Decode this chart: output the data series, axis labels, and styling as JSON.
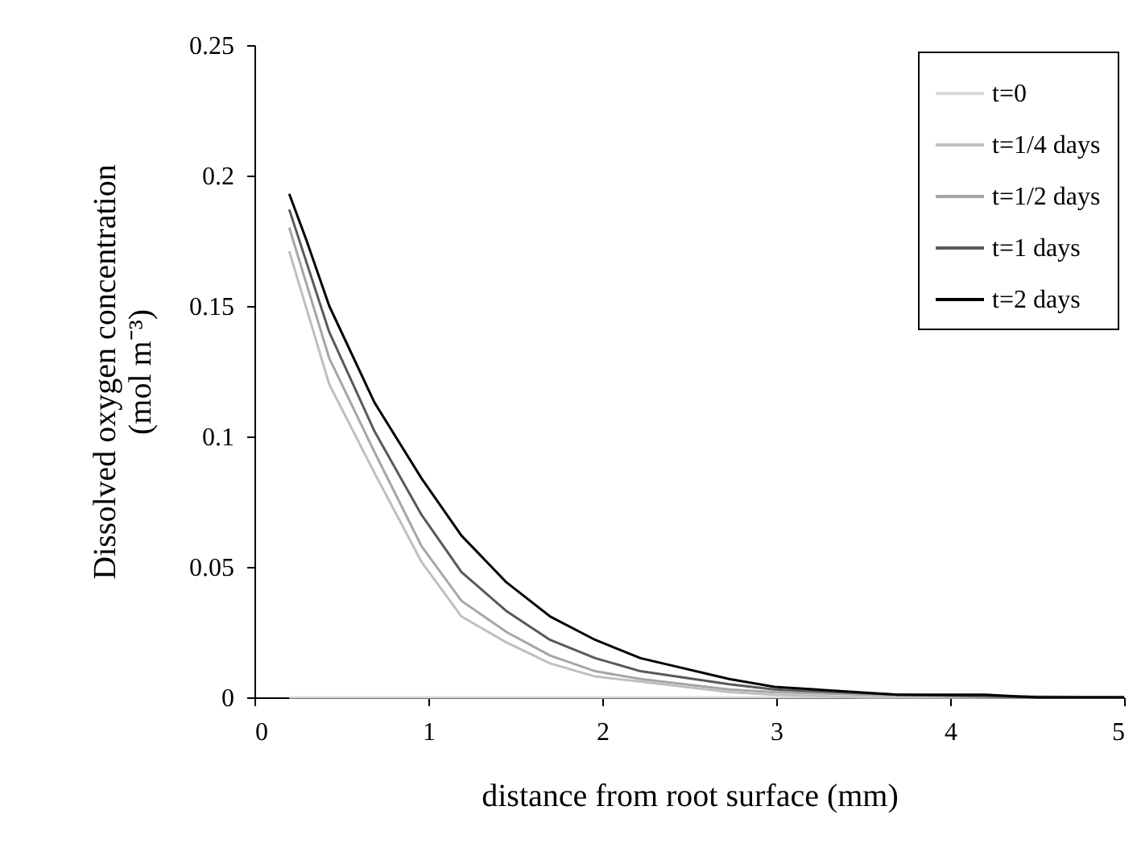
{
  "chart_data": {
    "type": "line",
    "xlabel": "distance from root surface (mm)",
    "ylabel": "Dissolved oxygen concentration\n(mol m⁻³)",
    "xlim": [
      0,
      5
    ],
    "xticks": [
      0,
      1,
      2,
      3,
      4,
      5
    ],
    "ylim": [
      0,
      0.25
    ],
    "yticks": [
      0,
      0.05,
      0.1,
      0.15,
      0.2,
      0.25
    ],
    "grid": false,
    "legend": "top right",
    "marker": "none",
    "line_style": "solid",
    "series": [
      {
        "name": "t=0",
        "color": "#d9d9d9",
        "x": [
          0.2,
          1,
          2,
          3,
          4,
          5
        ],
        "values": [
          0,
          0,
          0,
          0,
          0,
          0
        ]
      },
      {
        "name": "t=1/4 days",
        "color": "#bfbfbf",
        "x": [
          0.2,
          0.43,
          0.69,
          0.96,
          1.19,
          1.45,
          1.7,
          1.96,
          2.22,
          2.73,
          2.99,
          3.5,
          5
        ],
        "values": [
          0.171,
          0.12,
          0.086,
          0.052,
          0.031,
          0.021,
          0.013,
          0.008,
          0.006,
          0.002,
          0.001,
          0,
          0
        ]
      },
      {
        "name": "t=1/2 days",
        "color": "#a6a6a6",
        "x": [
          0.2,
          0.43,
          0.69,
          0.96,
          1.19,
          1.45,
          1.7,
          1.96,
          2.22,
          2.73,
          2.99,
          3.5,
          5
        ],
        "values": [
          0.18,
          0.13,
          0.094,
          0.058,
          0.037,
          0.025,
          0.016,
          0.01,
          0.007,
          0.003,
          0.002,
          0.001,
          0
        ]
      },
      {
        "name": "t=1 days",
        "color": "#595959",
        "x": [
          0.2,
          0.43,
          0.69,
          0.96,
          1.19,
          1.45,
          1.7,
          1.96,
          2.22,
          2.73,
          2.99,
          3.7,
          4.5,
          5
        ],
        "values": [
          0.187,
          0.14,
          0.102,
          0.07,
          0.048,
          0.033,
          0.022,
          0.015,
          0.01,
          0.005,
          0.003,
          0.001,
          0,
          0
        ]
      },
      {
        "name": "t=2 days",
        "color": "#000000",
        "x": [
          0.2,
          0.3,
          0.43,
          0.69,
          0.96,
          1.19,
          1.45,
          1.7,
          1.96,
          2.22,
          2.73,
          2.99,
          3.7,
          4.2,
          4.5,
          5
        ],
        "values": [
          0.193,
          0.175,
          0.15,
          0.113,
          0.084,
          0.062,
          0.044,
          0.031,
          0.022,
          0.015,
          0.007,
          0.004,
          0.001,
          0.001,
          0,
          0
        ]
      }
    ]
  }
}
